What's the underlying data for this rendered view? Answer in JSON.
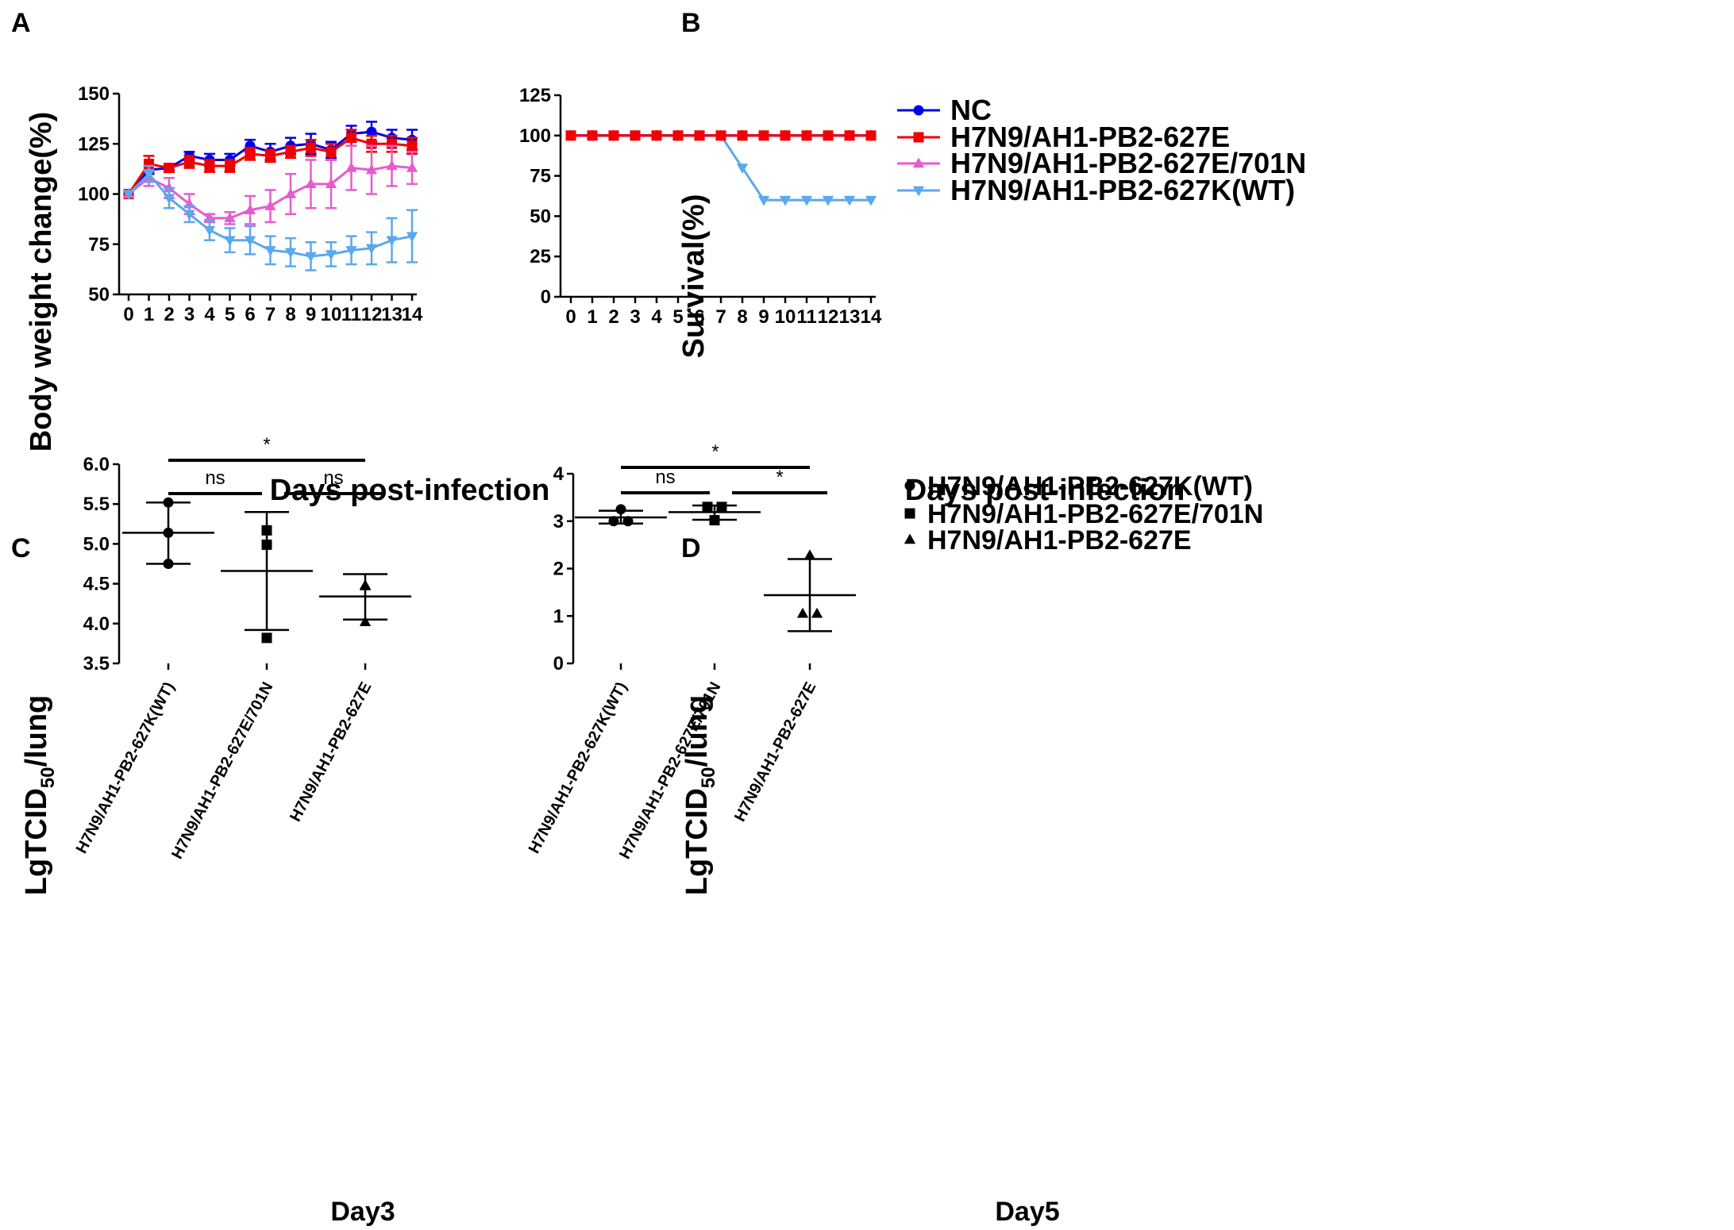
{
  "colors": {
    "NC": "#0000e6",
    "H7N9/AH1-PB2-627E": "#f00000",
    "H7N9/AH1-PB2-627E/701N": "#e65ccd",
    "H7N9/AH1-PB2-627K(WT)": "#5aa8ee",
    "axis": "#000000"
  },
  "panels": {
    "A": {
      "letter": "A",
      "ylabel": "Body weight change(%)",
      "xlabel": "Days post-infection"
    },
    "B": {
      "letter": "B",
      "ylabel": "Survival(%)",
      "xlabel": "Days post-infection"
    },
    "C": {
      "letter": "C",
      "ylabel_main": "LgTCID",
      "ylabel_sub": "50",
      "ylabel_tail": "/lung",
      "xlabel": "Day3"
    },
    "D": {
      "letter": "D",
      "ylabel_main": "LgTCID",
      "ylabel_sub": "50",
      "ylabel_tail": "/lung",
      "xlabel": "Day5"
    }
  },
  "legend_top": [
    {
      "label": "NC",
      "marker": "circle"
    },
    {
      "label": "H7N9/AH1-PB2-627E",
      "marker": "square"
    },
    {
      "label": "H7N9/AH1-PB2-627E/701N",
      "marker": "triangle-up"
    },
    {
      "label": "H7N9/AH1-PB2-627K(WT)",
      "marker": "triangle-down"
    }
  ],
  "legend_bottom": [
    {
      "label": "H7N9/AH1-PB2-627K(WT)",
      "marker": "circle"
    },
    {
      "label": "H7N9/AH1-PB2-627E/701N",
      "marker": "square"
    },
    {
      "label": "H7N9/AH1-PB2-627E",
      "marker": "triangle-up"
    }
  ],
  "chart_data": [
    {
      "panel": "A",
      "type": "line",
      "title": "",
      "xlabel": "Days post-infection",
      "ylabel": "Body weight change(%)",
      "x": [
        0,
        1,
        2,
        3,
        4,
        5,
        6,
        7,
        8,
        9,
        10,
        11,
        12,
        13,
        14
      ],
      "xlim": [
        0,
        14
      ],
      "ylim": [
        50,
        150
      ],
      "yticks": [
        50,
        75,
        100,
        125,
        150
      ],
      "series": [
        {
          "name": "NC",
          "marker": "circle",
          "values": [
            100,
            112,
            113,
            119,
            117,
            117,
            124,
            121,
            124,
            125,
            122,
            130,
            131,
            128,
            127
          ],
          "errors": [
            0,
            2,
            1,
            2,
            3,
            3,
            3,
            4,
            4,
            5,
            4,
            4,
            5,
            4,
            5
          ]
        },
        {
          "name": "H7N9/AH1-PB2-627E",
          "marker": "square",
          "values": [
            100,
            115,
            113,
            116,
            114,
            114,
            120,
            119,
            121,
            123,
            121,
            128,
            125,
            125,
            124
          ],
          "errors": [
            0,
            4,
            2,
            3,
            3,
            3,
            3,
            3,
            3,
            4,
            4,
            4,
            4,
            4,
            4
          ]
        },
        {
          "name": "H7N9/AH1-PB2-627E/701N",
          "marker": "triangle-up",
          "values": [
            100,
            108,
            103,
            95,
            88,
            88,
            92,
            94,
            100,
            105,
            105,
            113,
            112,
            114,
            113
          ],
          "errors": [
            0,
            4,
            5,
            5,
            2,
            3,
            7,
            8,
            10,
            12,
            12,
            11,
            12,
            10,
            8
          ]
        },
        {
          "name": "H7N9/AH1-PB2-627K(WT)",
          "marker": "triangle-down",
          "values": [
            100,
            110,
            98,
            90,
            82,
            77,
            77,
            72,
            71,
            69,
            70,
            72,
            73,
            77,
            79
          ],
          "errors": [
            0,
            4,
            5,
            4,
            5,
            6,
            7,
            7,
            7,
            7,
            6,
            7,
            8,
            11,
            13
          ]
        }
      ]
    },
    {
      "panel": "B",
      "type": "line",
      "title": "",
      "xlabel": "Days post-infection",
      "ylabel": "Survival(%)",
      "x": [
        0,
        1,
        2,
        3,
        4,
        5,
        6,
        7,
        8,
        9,
        10,
        11,
        12,
        13,
        14
      ],
      "xlim": [
        0,
        14
      ],
      "ylim": [
        0,
        125
      ],
      "yticks": [
        0,
        25,
        50,
        75,
        100,
        125
      ],
      "series": [
        {
          "name": "H7N9/AH1-PB2-627K(WT)",
          "marker": "triangle-down",
          "values": [
            100,
            100,
            100,
            100,
            100,
            100,
            100,
            100,
            80,
            60,
            60,
            60,
            60,
            60,
            60
          ]
        },
        {
          "name": "H7N9/AH1-PB2-627E/701N",
          "marker": "triangle-up",
          "values": [
            100,
            100,
            100,
            100,
            100,
            100,
            100,
            100,
            100,
            100,
            100,
            100,
            100,
            100,
            100
          ]
        },
        {
          "name": "NC",
          "marker": "circle",
          "values": [
            100,
            100,
            100,
            100,
            100,
            100,
            100,
            100,
            100,
            100,
            100,
            100,
            100,
            100,
            100
          ]
        },
        {
          "name": "H7N9/AH1-PB2-627E",
          "marker": "square",
          "values": [
            100,
            100,
            100,
            100,
            100,
            100,
            100,
            100,
            100,
            100,
            100,
            100,
            100,
            100,
            100
          ]
        }
      ]
    },
    {
      "panel": "C",
      "type": "scatter",
      "title": "Day3",
      "ylabel": "LgTCID50/lung",
      "ylim": [
        3.5,
        6.0
      ],
      "yticks": [
        "3.5",
        "4.0",
        "4.5",
        "5.0",
        "5.5",
        "6.0"
      ],
      "categories": [
        "H7N9/AH1-PB2-627K(WT)",
        "H7N9/AH1-PB2-627E/701N",
        "H7N9/AH1-PB2-627E"
      ],
      "groups": [
        {
          "name": "H7N9/AH1-PB2-627K(WT)",
          "marker": "circle",
          "points": [
            5.52,
            5.14,
            4.75
          ],
          "mean": 5.14,
          "sd_low": 4.75,
          "sd_high": 5.52
        },
        {
          "name": "H7N9/AH1-PB2-627E/701N",
          "marker": "square",
          "points": [
            5.17,
            4.99,
            3.82
          ],
          "mean": 4.66,
          "sd_low": 3.92,
          "sd_high": 5.4
        },
        {
          "name": "H7N9/AH1-PB2-627E",
          "marker": "triangle-up",
          "points": [
            4.48,
            4.47,
            4.02
          ],
          "mean": 4.34,
          "sd_low": 4.05,
          "sd_high": 4.62
        }
      ],
      "comparisons": [
        {
          "from": 0,
          "to": 2,
          "label": "*",
          "level": 2
        },
        {
          "from": 0,
          "to": 1,
          "label": "ns",
          "level": 1
        },
        {
          "from": 1,
          "to": 2,
          "label": "ns",
          "level": 1
        }
      ]
    },
    {
      "panel": "D",
      "type": "scatter",
      "title": "Day5",
      "ylabel": "LgTCID50/lung",
      "ylim": [
        0,
        4
      ],
      "yticks": [
        "0",
        "1",
        "2",
        "3",
        "4"
      ],
      "categories": [
        "H7N9/AH1-PB2-627K(WT)",
        "H7N9/AH1-PB2-627E/701N",
        "H7N9/AH1-PB2-627E"
      ],
      "groups": [
        {
          "name": "H7N9/AH1-PB2-627K(WT)",
          "marker": "circle",
          "points": [
            3.25,
            3.0,
            3.0
          ],
          "mean": 3.08,
          "sd_low": 2.95,
          "sd_high": 3.22
        },
        {
          "name": "H7N9/AH1-PB2-627E/701N",
          "marker": "square",
          "points": [
            3.3,
            3.3,
            3.02
          ],
          "mean": 3.19,
          "sd_low": 3.03,
          "sd_high": 3.33
        },
        {
          "name": "H7N9/AH1-PB2-627E",
          "marker": "triangle-up",
          "points": [
            2.28,
            1.05,
            1.05
          ],
          "mean": 1.44,
          "sd_low": 0.68,
          "sd_high": 2.2
        }
      ],
      "comparisons": [
        {
          "from": 0,
          "to": 2,
          "label": "*",
          "level": 2
        },
        {
          "from": 0,
          "to": 1,
          "label": "ns",
          "level": 1
        },
        {
          "from": 1,
          "to": 2,
          "label": "*",
          "level": 1
        }
      ]
    }
  ]
}
